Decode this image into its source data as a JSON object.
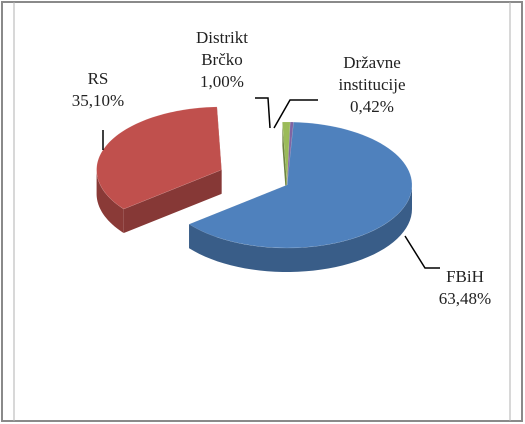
{
  "chart_data": {
    "type": "pie3d",
    "categories": [
      "FBiH",
      "RS",
      "Distrikt Brčko",
      "Državne institucije"
    ],
    "values": [
      63.48,
      35.1,
      1.0,
      0.42
    ],
    "value_labels": [
      "63,48%",
      "35,10%",
      "1,00%",
      "0,42%"
    ],
    "colors": [
      "#4f81bd",
      "#c0504d",
      "#9bbb59",
      "#8064a2"
    ]
  }
}
